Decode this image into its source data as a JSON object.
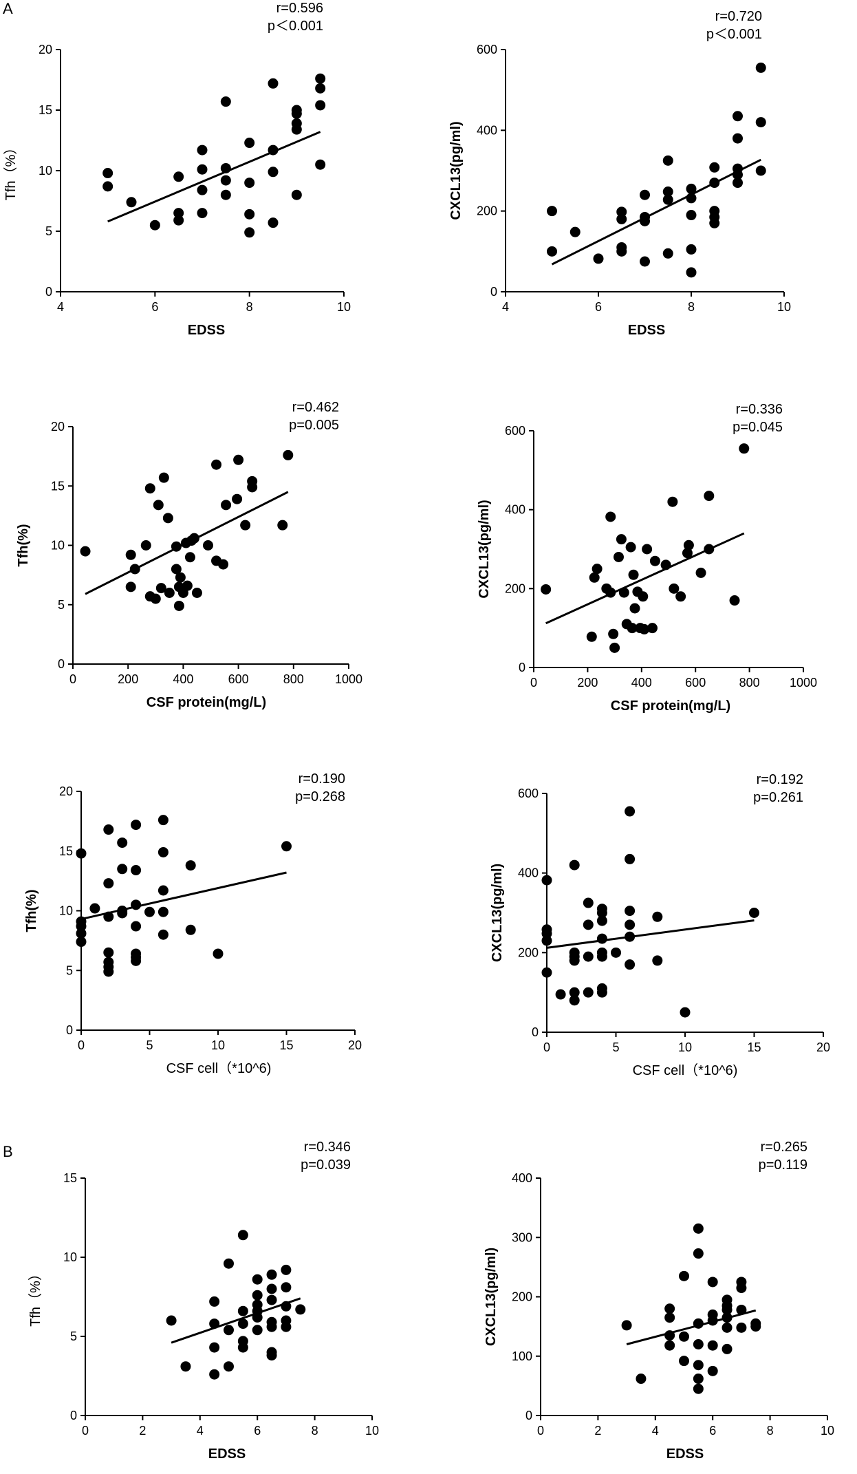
{
  "panel_labels": [
    "A",
    "B"
  ],
  "chart_data": [
    {
      "type": "scatter",
      "panel": "A",
      "xlabel": "EDSS",
      "ylabel": "Tfh（%）",
      "xlim": [
        4,
        10
      ],
      "ylim": [
        0,
        20
      ],
      "xticks": [
        4,
        6,
        8,
        10
      ],
      "yticks": [
        0,
        5,
        10,
        15,
        20
      ],
      "annotation": [
        "r=0.596",
        "p＜0.001"
      ],
      "points": [
        [
          5,
          9.8
        ],
        [
          5,
          8.7
        ],
        [
          5.5,
          7.4
        ],
        [
          6,
          5.5
        ],
        [
          6.5,
          9.5
        ],
        [
          6.5,
          6.5
        ],
        [
          6.5,
          5.9
        ],
        [
          7,
          11.7
        ],
        [
          7,
          10.1
        ],
        [
          7,
          8.4
        ],
        [
          7,
          6.5
        ],
        [
          7.5,
          15.7
        ],
        [
          7.5,
          10.2
        ],
        [
          7.5,
          9.2
        ],
        [
          7.5,
          8.0
        ],
        [
          8,
          12.3
        ],
        [
          8,
          9.0
        ],
        [
          8,
          6.4
        ],
        [
          8,
          4.9
        ],
        [
          8.5,
          17.2
        ],
        [
          8.5,
          11.7
        ],
        [
          8.5,
          9.9
        ],
        [
          8.5,
          5.7
        ],
        [
          9,
          15.0
        ],
        [
          9,
          14.7
        ],
        [
          9,
          13.9
        ],
        [
          9,
          13.4
        ],
        [
          9,
          8.0
        ],
        [
          9.5,
          17.6
        ],
        [
          9.5,
          16.8
        ],
        [
          9.5,
          15.4
        ],
        [
          9.5,
          10.5
        ]
      ],
      "fit": {
        "x": [
          5,
          9.5
        ],
        "y": [
          5.8,
          13.2
        ]
      }
    },
    {
      "type": "scatter",
      "panel": "A",
      "xlabel": "EDSS",
      "ylabel": "CXCL13(pg/ml)",
      "xlim": [
        4,
        10
      ],
      "ylim": [
        0,
        600
      ],
      "xticks": [
        4,
        6,
        8,
        10
      ],
      "yticks": [
        0,
        200,
        400,
        600
      ],
      "annotation": [
        "r=0.720",
        "p＜0.001"
      ],
      "points": [
        [
          5,
          200
        ],
        [
          5,
          100
        ],
        [
          5.5,
          148
        ],
        [
          6,
          82
        ],
        [
          6.5,
          198
        ],
        [
          6.5,
          180
        ],
        [
          6.5,
          110
        ],
        [
          6.5,
          100
        ],
        [
          7,
          240
        ],
        [
          7,
          185
        ],
        [
          7,
          175
        ],
        [
          7,
          75
        ],
        [
          7.5,
          325
        ],
        [
          7.5,
          248
        ],
        [
          7.5,
          228
        ],
        [
          7.5,
          95
        ],
        [
          8,
          255
        ],
        [
          8,
          232
        ],
        [
          8,
          190
        ],
        [
          8,
          105
        ],
        [
          8,
          48
        ],
        [
          8.5,
          308
        ],
        [
          8.5,
          270
        ],
        [
          8.5,
          200
        ],
        [
          8.5,
          185
        ],
        [
          8.5,
          170
        ],
        [
          9,
          435
        ],
        [
          9,
          380
        ],
        [
          9,
          305
        ],
        [
          9,
          290
        ],
        [
          9,
          270
        ],
        [
          9.5,
          555
        ],
        [
          9.5,
          420
        ],
        [
          9.5,
          300
        ]
      ],
      "fit": {
        "x": [
          5,
          9.5
        ],
        "y": [
          68,
          327
        ]
      }
    },
    {
      "type": "scatter",
      "panel": "A",
      "xlabel": "CSF protein(mg/L)",
      "ylabel": "Tfh(%)",
      "xlim": [
        0,
        1000
      ],
      "ylim": [
        0,
        20
      ],
      "xticks": [
        0,
        200,
        400,
        600,
        800,
        1000
      ],
      "yticks": [
        0,
        5,
        10,
        15,
        20
      ],
      "annotation": [
        "r=0.462",
        "p=0.005"
      ],
      "points": [
        [
          45,
          9.5
        ],
        [
          210,
          9.2
        ],
        [
          210,
          6.5
        ],
        [
          225,
          8.0
        ],
        [
          265,
          10.0
        ],
        [
          280,
          14.8
        ],
        [
          280,
          5.7
        ],
        [
          300,
          5.5
        ],
        [
          310,
          13.4
        ],
        [
          320,
          6.4
        ],
        [
          330,
          15.7
        ],
        [
          345,
          12.3
        ],
        [
          350,
          6.0
        ],
        [
          375,
          9.9
        ],
        [
          375,
          8.0
        ],
        [
          385,
          6.5
        ],
        [
          385,
          4.9
        ],
        [
          390,
          7.3
        ],
        [
          400,
          6.0
        ],
        [
          410,
          10.2
        ],
        [
          415,
          6.6
        ],
        [
          425,
          9.0
        ],
        [
          430,
          10.4
        ],
        [
          440,
          10.6
        ],
        [
          450,
          6.0
        ],
        [
          490,
          10.0
        ],
        [
          520,
          16.8
        ],
        [
          520,
          8.7
        ],
        [
          545,
          8.4
        ],
        [
          555,
          13.4
        ],
        [
          595,
          13.9
        ],
        [
          600,
          17.2
        ],
        [
          625,
          11.7
        ],
        [
          650,
          15.4
        ],
        [
          650,
          14.9
        ],
        [
          760,
          11.7
        ],
        [
          780,
          17.6
        ]
      ],
      "fit": {
        "x": [
          45,
          780
        ],
        "y": [
          5.9,
          14.5
        ]
      }
    },
    {
      "type": "scatter",
      "panel": "A",
      "xlabel": "CSF protein(mg/L)",
      "ylabel": "CXCL13(pg/ml)",
      "xlim": [
        0,
        1000
      ],
      "ylim": [
        0,
        600
      ],
      "xticks": [
        0,
        200,
        400,
        600,
        800,
        1000
      ],
      "yticks": [
        0,
        200,
        400,
        600
      ],
      "annotation": [
        "r=0.336",
        "p=0.045"
      ],
      "points": [
        [
          45,
          198
        ],
        [
          215,
          78
        ],
        [
          225,
          228
        ],
        [
          235,
          250
        ],
        [
          270,
          200
        ],
        [
          285,
          382
        ],
        [
          285,
          190
        ],
        [
          295,
          85
        ],
        [
          300,
          50
        ],
        [
          315,
          280
        ],
        [
          325,
          325
        ],
        [
          335,
          190
        ],
        [
          345,
          110
        ],
        [
          360,
          305
        ],
        [
          365,
          100
        ],
        [
          370,
          235
        ],
        [
          375,
          150
        ],
        [
          385,
          192
        ],
        [
          395,
          100
        ],
        [
          405,
          180
        ],
        [
          410,
          97
        ],
        [
          420,
          300
        ],
        [
          440,
          100
        ],
        [
          450,
          270
        ],
        [
          490,
          260
        ],
        [
          515,
          420
        ],
        [
          520,
          200
        ],
        [
          545,
          180
        ],
        [
          570,
          290
        ],
        [
          575,
          310
        ],
        [
          620,
          240
        ],
        [
          650,
          435
        ],
        [
          650,
          300
        ],
        [
          745,
          170
        ],
        [
          780,
          555
        ]
      ],
      "fit": {
        "x": [
          45,
          780
        ],
        "y": [
          112,
          340
        ]
      }
    },
    {
      "type": "scatter",
      "panel": "A",
      "xlabel": "CSF cell（*10^6)",
      "ylabel": "Tfh(%)",
      "xlim": [
        0,
        20
      ],
      "ylim": [
        0,
        20
      ],
      "xticks": [
        0,
        5,
        10,
        15,
        20
      ],
      "yticks": [
        0,
        5,
        10,
        15,
        20
      ],
      "annotation": [
        "r=0.190",
        "p=0.268"
      ],
      "points": [
        [
          0,
          14.8
        ],
        [
          0,
          9.1
        ],
        [
          0,
          8.7
        ],
        [
          0,
          8.1
        ],
        [
          0,
          7.4
        ],
        [
          1,
          10.2
        ],
        [
          2,
          16.8
        ],
        [
          2,
          12.3
        ],
        [
          2,
          9.5
        ],
        [
          2,
          6.5
        ],
        [
          2,
          5.7
        ],
        [
          2,
          5.3
        ],
        [
          2,
          4.9
        ],
        [
          3,
          15.7
        ],
        [
          3,
          13.5
        ],
        [
          3,
          10.0
        ],
        [
          3,
          9.8
        ],
        [
          4,
          17.2
        ],
        [
          4,
          13.4
        ],
        [
          4,
          10.5
        ],
        [
          4,
          8.7
        ],
        [
          4,
          6.4
        ],
        [
          4,
          6.1
        ],
        [
          4,
          5.8
        ],
        [
          5,
          9.9
        ],
        [
          6,
          17.6
        ],
        [
          6,
          14.9
        ],
        [
          6,
          11.7
        ],
        [
          6,
          9.9
        ],
        [
          6,
          8.0
        ],
        [
          8,
          13.8
        ],
        [
          8,
          8.4
        ],
        [
          10,
          6.4
        ],
        [
          15,
          15.4
        ]
      ],
      "fit": {
        "x": [
          0,
          15
        ],
        "y": [
          9.3,
          13.2
        ]
      }
    },
    {
      "type": "scatter",
      "panel": "A",
      "xlabel": "CSF cell（*10^6)",
      "ylabel": "CXCL13(pg/ml)",
      "xlim": [
        0,
        20
      ],
      "ylim": [
        0,
        600
      ],
      "xticks": [
        0,
        5,
        10,
        15,
        20
      ],
      "yticks": [
        0,
        200,
        400,
        600
      ],
      "annotation": [
        "r=0.192",
        "p=0.261"
      ],
      "points": [
        [
          0,
          382
        ],
        [
          0,
          258
        ],
        [
          0,
          248
        ],
        [
          0,
          230
        ],
        [
          0,
          150
        ],
        [
          1,
          95
        ],
        [
          2,
          420
        ],
        [
          2,
          200
        ],
        [
          2,
          190
        ],
        [
          2,
          180
        ],
        [
          2,
          100
        ],
        [
          2,
          80
        ],
        [
          3,
          325
        ],
        [
          3,
          270
        ],
        [
          3,
          190
        ],
        [
          3,
          100
        ],
        [
          4,
          310
        ],
        [
          4,
          300
        ],
        [
          4,
          280
        ],
        [
          4,
          235
        ],
        [
          4,
          200
        ],
        [
          4,
          190
        ],
        [
          4,
          110
        ],
        [
          4,
          100
        ],
        [
          5,
          200
        ],
        [
          6,
          555
        ],
        [
          6,
          435
        ],
        [
          6,
          305
        ],
        [
          6,
          270
        ],
        [
          6,
          240
        ],
        [
          6,
          170
        ],
        [
          8,
          290
        ],
        [
          8,
          180
        ],
        [
          10,
          50
        ],
        [
          15,
          300
        ]
      ],
      "fit": {
        "x": [
          0,
          15
        ],
        "y": [
          212,
          281
        ]
      }
    },
    {
      "type": "scatter",
      "panel": "B",
      "xlabel": "EDSS",
      "ylabel": "Tfh（%）",
      "xlim": [
        0,
        10
      ],
      "ylim": [
        0,
        15
      ],
      "xticks": [
        0,
        2,
        4,
        6,
        8,
        10
      ],
      "yticks": [
        0,
        5,
        10,
        15
      ],
      "annotation": [
        "r=0.346",
        "p=0.039"
      ],
      "points": [
        [
          3,
          6.0
        ],
        [
          3.5,
          3.1
        ],
        [
          4.5,
          7.2
        ],
        [
          4.5,
          5.8
        ],
        [
          4.5,
          4.3
        ],
        [
          4.5,
          2.6
        ],
        [
          5,
          9.6
        ],
        [
          5,
          5.4
        ],
        [
          5,
          3.1
        ],
        [
          5.5,
          11.4
        ],
        [
          5.5,
          6.6
        ],
        [
          5.5,
          5.8
        ],
        [
          5.5,
          4.7
        ],
        [
          5.5,
          4.3
        ],
        [
          6,
          8.6
        ],
        [
          6,
          7.6
        ],
        [
          6,
          7.0
        ],
        [
          6,
          6.6
        ],
        [
          6,
          6.2
        ],
        [
          6,
          5.4
        ],
        [
          6.5,
          8.9
        ],
        [
          6.5,
          8.0
        ],
        [
          6.5,
          7.3
        ],
        [
          6.5,
          5.9
        ],
        [
          6.5,
          5.6
        ],
        [
          6.5,
          4.0
        ],
        [
          6.5,
          3.8
        ],
        [
          7,
          9.2
        ],
        [
          7,
          8.1
        ],
        [
          7,
          6.9
        ],
        [
          7,
          6.0
        ],
        [
          7,
          5.6
        ],
        [
          7.5,
          6.7
        ]
      ],
      "fit": {
        "x": [
          3,
          7.5
        ],
        "y": [
          4.6,
          7.4
        ]
      }
    },
    {
      "type": "scatter",
      "panel": "B",
      "xlabel": "EDSS",
      "ylabel": "CXCL13(pg/ml)",
      "xlim": [
        0,
        10
      ],
      "ylim": [
        0,
        400
      ],
      "xticks": [
        0,
        2,
        4,
        6,
        8,
        10
      ],
      "yticks": [
        0,
        100,
        200,
        300,
        400
      ],
      "annotation": [
        "r=0.265",
        "p=0.119"
      ],
      "points": [
        [
          3,
          152
        ],
        [
          3.5,
          62
        ],
        [
          4.5,
          180
        ],
        [
          4.5,
          165
        ],
        [
          4.5,
          135
        ],
        [
          4.5,
          118
        ],
        [
          5,
          235
        ],
        [
          5,
          133
        ],
        [
          5,
          92
        ],
        [
          5.5,
          315
        ],
        [
          5.5,
          273
        ],
        [
          5.5,
          155
        ],
        [
          5.5,
          120
        ],
        [
          5.5,
          85
        ],
        [
          5.5,
          62
        ],
        [
          5.5,
          45
        ],
        [
          6,
          225
        ],
        [
          6,
          170
        ],
        [
          6,
          160
        ],
        [
          6,
          118
        ],
        [
          6,
          75
        ],
        [
          6.5,
          195
        ],
        [
          6.5,
          185
        ],
        [
          6.5,
          178
        ],
        [
          6.5,
          165
        ],
        [
          6.5,
          148
        ],
        [
          6.5,
          112
        ],
        [
          7,
          225
        ],
        [
          7,
          215
        ],
        [
          7,
          178
        ],
        [
          7,
          148
        ],
        [
          7.5,
          155
        ],
        [
          7.5,
          150
        ]
      ],
      "fit": {
        "x": [
          3,
          7.5
        ],
        "y": [
          120,
          177
        ]
      }
    }
  ]
}
